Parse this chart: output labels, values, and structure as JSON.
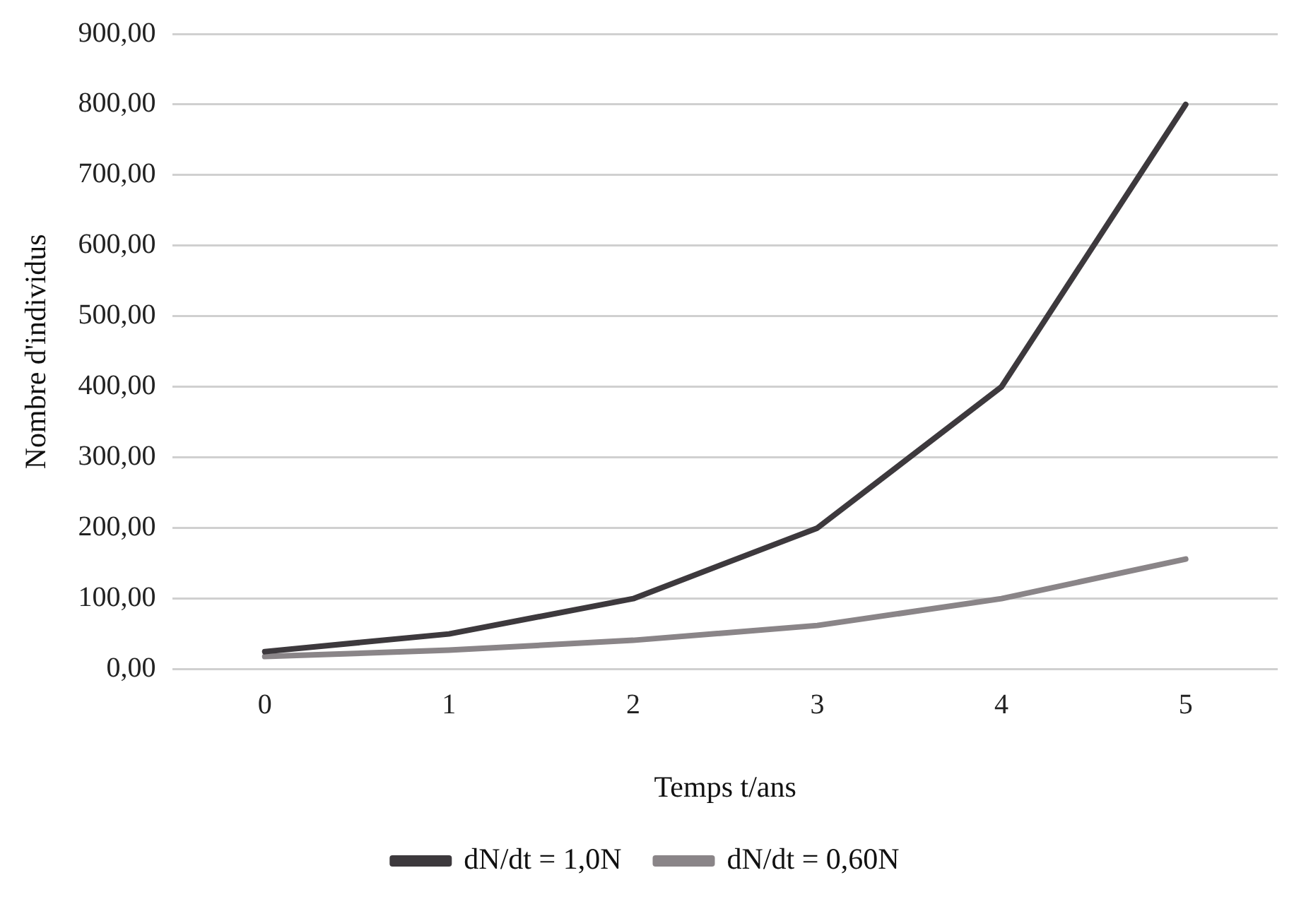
{
  "chart_data": {
    "type": "line",
    "xlabel": "Temps t/ans",
    "ylabel": "Nombre d'individus",
    "categories": [
      "0",
      "1",
      "2",
      "3",
      "4",
      "5"
    ],
    "series": [
      {
        "name": "dN/dt = 1,0N",
        "color": "#3d393d",
        "values": [
          25,
          50,
          100,
          200,
          400,
          800
        ]
      },
      {
        "name": "dN/dt = 0,60N",
        "color": "#8a8588",
        "values": [
          18,
          27,
          41,
          62,
          100,
          156
        ]
      }
    ],
    "ylim": [
      0,
      900
    ],
    "yticks": [
      {
        "value": 0,
        "label": "0,00"
      },
      {
        "value": 100,
        "label": "100,00"
      },
      {
        "value": 200,
        "label": "200,00"
      },
      {
        "value": 300,
        "label": "300,00"
      },
      {
        "value": 400,
        "label": "400,00"
      },
      {
        "value": 500,
        "label": "500,00"
      },
      {
        "value": 600,
        "label": "600,00"
      },
      {
        "value": 700,
        "label": "700,00"
      },
      {
        "value": 800,
        "label": "800,00"
      },
      {
        "value": 900,
        "label": "900,00"
      }
    ],
    "grid": "y",
    "legend": "bottom",
    "marker": "none",
    "line_style": "solid"
  }
}
